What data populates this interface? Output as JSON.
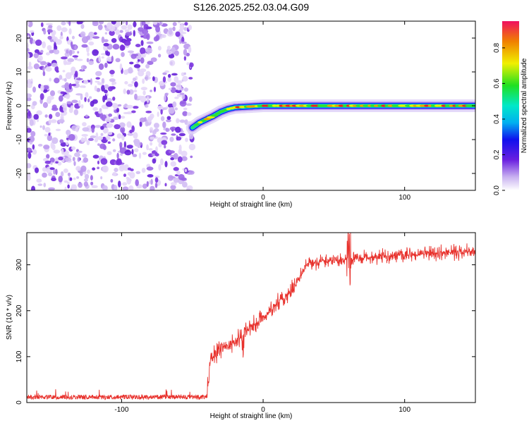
{
  "title": "S126.2025.252.03.04.G09",
  "chart_data": [
    {
      "type": "heatmap",
      "name": "spectrogram",
      "xlabel": "Height of straight line (km)",
      "ylabel": "Frequency (Hz)",
      "xlim": [
        -167,
        150
      ],
      "ylim": [
        -25,
        25
      ],
      "xticks": [
        -100,
        0,
        100
      ],
      "yticks": [
        -20,
        -10,
        0,
        10,
        20
      ],
      "colorbar": {
        "label": "Normalized spectral amplitude",
        "range": [
          0,
          0.95
        ],
        "ticks": [
          0.0,
          0.2,
          0.4,
          0.6,
          0.8
        ]
      },
      "noise_region_x": [
        -167,
        -50
      ],
      "ridge_line": {
        "x": [
          -50,
          -45,
          -40,
          -35,
          -30,
          -25,
          -20,
          0,
          150
        ],
        "frequency_hz": [
          -6.5,
          -5,
          -4,
          -3,
          -1.8,
          -1,
          -0.5,
          0,
          0
        ]
      }
    },
    {
      "type": "line",
      "name": "snr",
      "xlabel": "Height of straight line (km)",
      "ylabel": "SNR (10 * v/v)",
      "xlim": [
        -167,
        150
      ],
      "ylim": [
        0,
        370
      ],
      "xticks": [
        -100,
        0,
        100
      ],
      "yticks": [
        0,
        100,
        200,
        300
      ],
      "color": "#e8322d",
      "trend": {
        "x": [
          -167,
          -40,
          -37,
          -30,
          -20,
          -10,
          0,
          10,
          20,
          25,
          30,
          40,
          60,
          80,
          100,
          120,
          150
        ],
        "snr": [
          12,
          12,
          95,
          120,
          130,
          160,
          185,
          215,
          240,
          270,
          300,
          308,
          312,
          318,
          320,
          325,
          330
        ]
      }
    }
  ]
}
